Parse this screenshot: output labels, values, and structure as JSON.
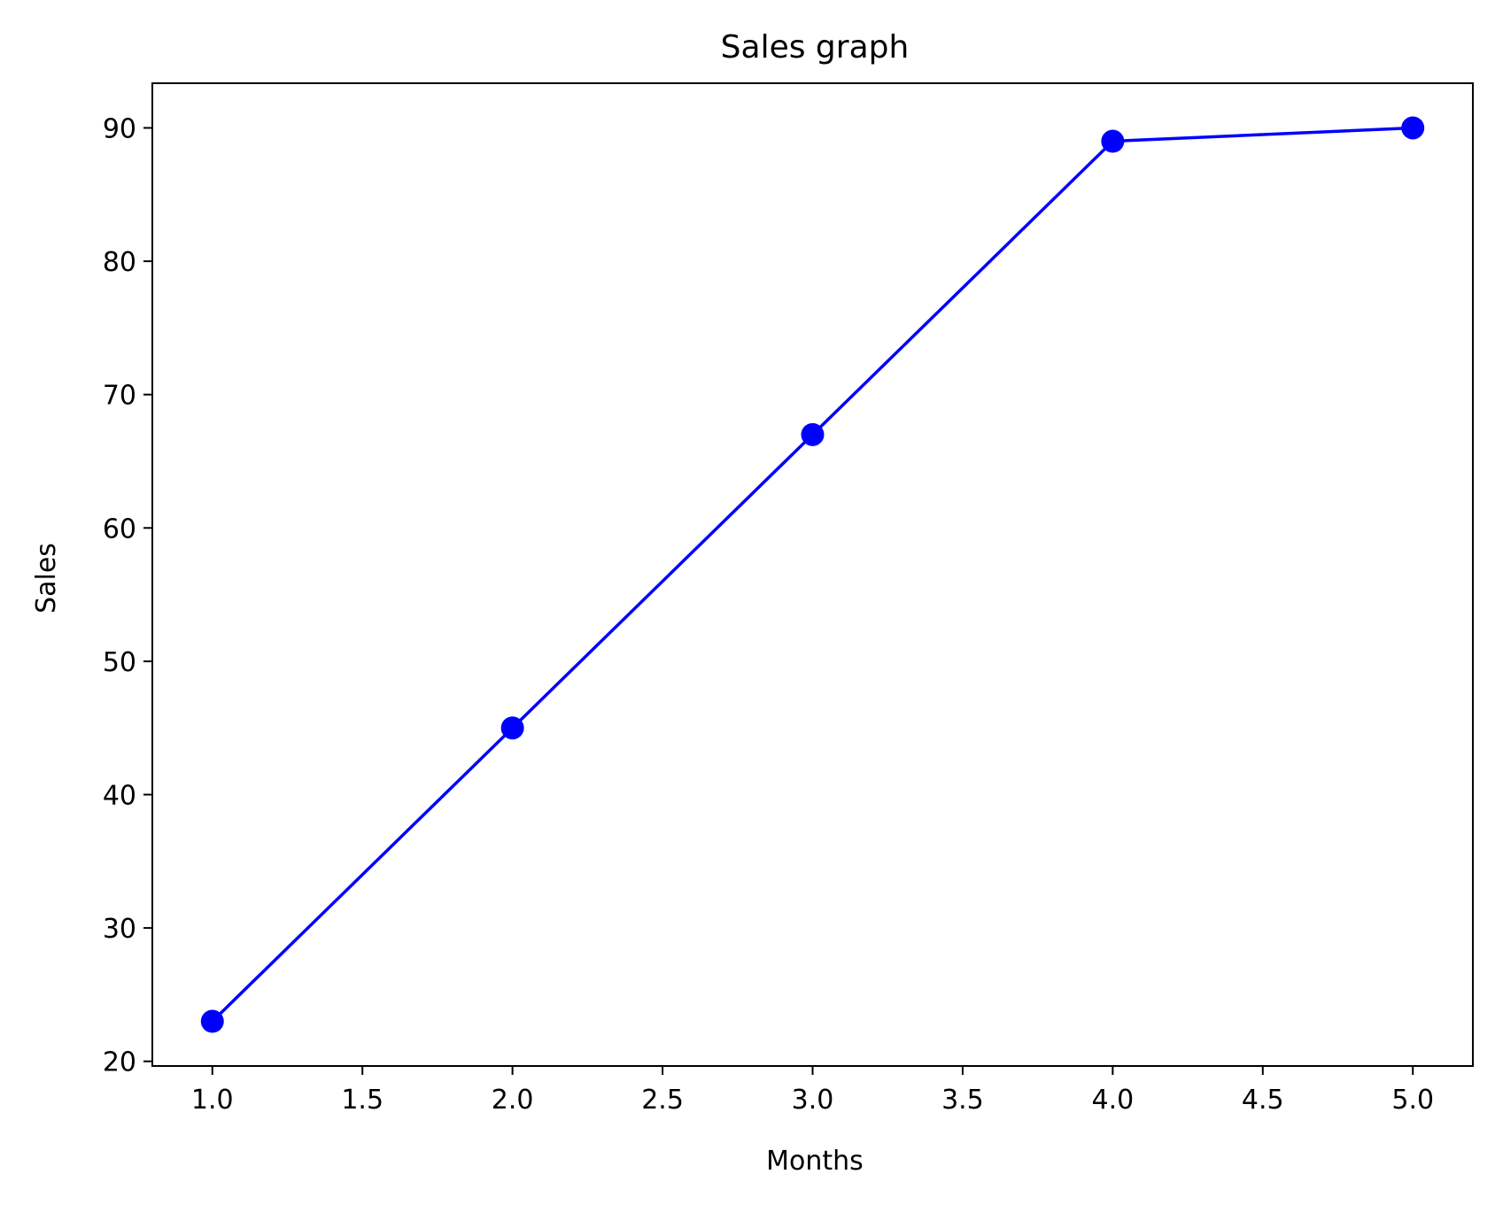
{
  "chart_data": {
    "type": "line",
    "title": "Sales graph",
    "xlabel": "Months",
    "ylabel": "Sales",
    "x": [
      1,
      2,
      3,
      4,
      5
    ],
    "series": [
      {
        "values": [
          23,
          45,
          67,
          89,
          90
        ],
        "color": "#0000ff",
        "marker": "circle"
      }
    ],
    "xlim": [
      0.8,
      5.2
    ],
    "ylim": [
      19.65,
      93.35
    ],
    "xticks": [
      1.0,
      1.5,
      2.0,
      2.5,
      3.0,
      3.5,
      4.0,
      4.5,
      5.0
    ],
    "xtick_labels": [
      "1.0",
      "1.5",
      "2.0",
      "2.5",
      "3.0",
      "3.5",
      "4.0",
      "4.5",
      "5.0"
    ],
    "yticks": [
      20,
      30,
      40,
      50,
      60,
      70,
      80,
      90
    ],
    "ytick_labels": [
      "20",
      "30",
      "40",
      "50",
      "60",
      "70",
      "80",
      "90"
    ],
    "grid": false,
    "legend": "none"
  }
}
